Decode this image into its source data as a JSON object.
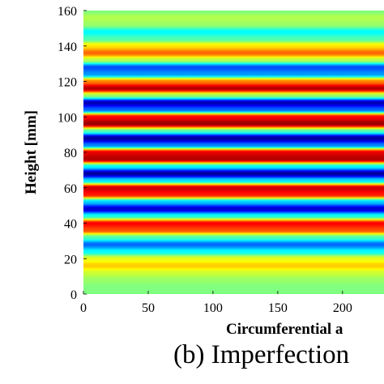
{
  "chart_data": {
    "type": "heatmap",
    "xlabel": "Circumferential a",
    "ylabel": "Height [mm]",
    "x_ticks": [
      "0",
      "50",
      "100",
      "150",
      "200"
    ],
    "y_ticks": [
      "0",
      "20",
      "40",
      "60",
      "80",
      "100",
      "120",
      "140",
      "160"
    ],
    "xlim": [
      0,
      232
    ],
    "ylim": [
      0,
      160
    ],
    "colormap": "jet",
    "color_range": [
      -1,
      1
    ],
    "rows": {
      "y": [
        0,
        4,
        8,
        12,
        16,
        20,
        24,
        28,
        32,
        36,
        40,
        44,
        48,
        52,
        56,
        60,
        64,
        68,
        72,
        76,
        80,
        84,
        88,
        92,
        96,
        100,
        104,
        108,
        112,
        116,
        120,
        124,
        128,
        132,
        136,
        140,
        144,
        148,
        152,
        156,
        160
      ],
      "value": [
        0.0,
        0.0,
        0.05,
        0.15,
        0.35,
        0.2,
        -0.25,
        -0.55,
        -0.1,
        0.6,
        0.75,
        -0.2,
        -0.85,
        -0.35,
        0.7,
        0.85,
        -0.3,
        -0.95,
        -0.25,
        0.9,
        0.8,
        -0.5,
        -0.95,
        -0.1,
        0.95,
        0.75,
        -0.55,
        -0.9,
        0.05,
        0.9,
        0.5,
        -0.45,
        -0.6,
        0.1,
        0.55,
        0.3,
        -0.1,
        -0.25,
        0.05,
        0.1,
        0.0
      ]
    }
  },
  "caption": "(b) Imperfection"
}
